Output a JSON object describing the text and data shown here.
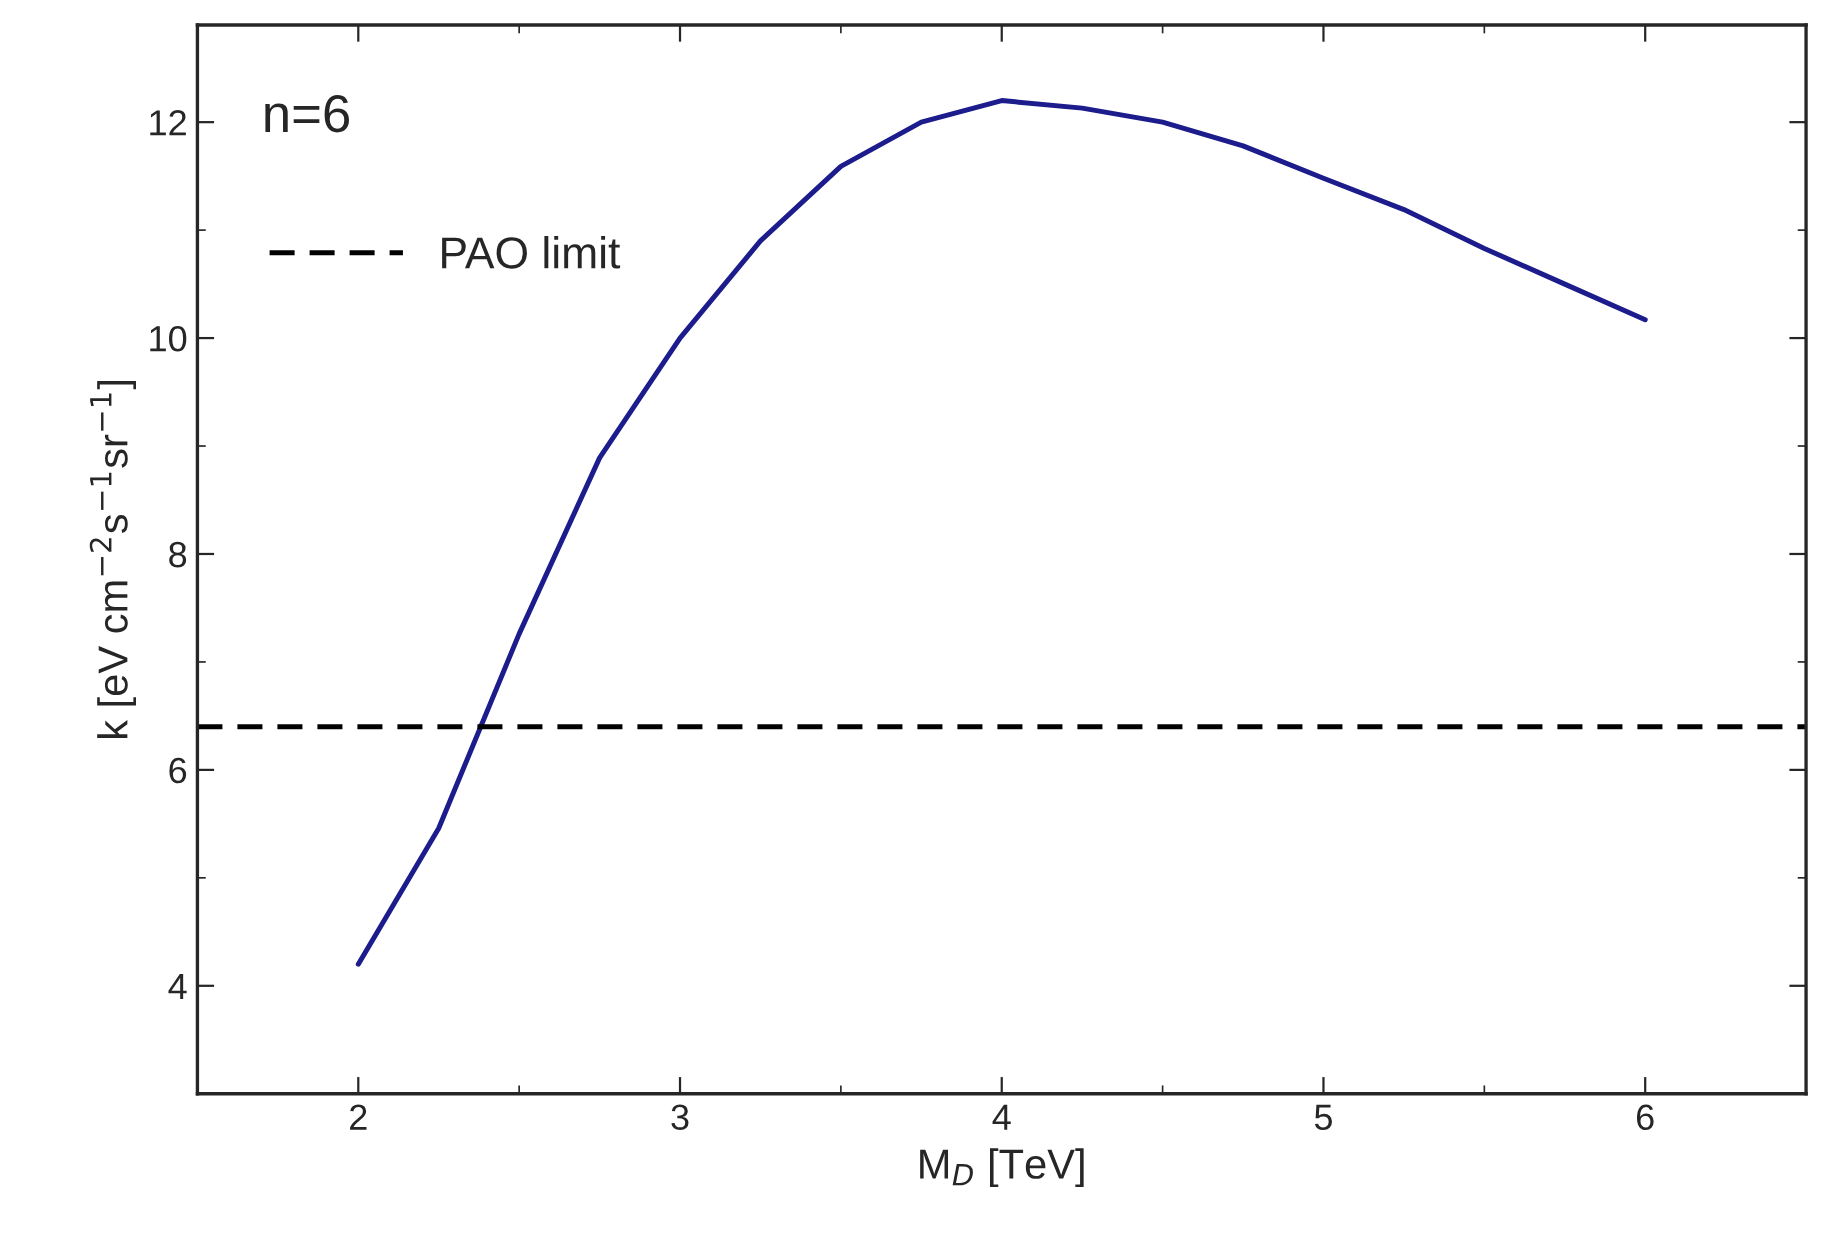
{
  "chart_data": {
    "type": "line",
    "xlabel": "M$_{D}$ [TeV]",
    "ylabel": "k [eV cm$^{−2}$s$^{−1}$sr$^{−1}$]",
    "annotations": [
      "n=6"
    ],
    "x": [
      2,
      2.25,
      2.5,
      2.75,
      3,
      3.25,
      3.5,
      3.75,
      4,
      4.25,
      4.5,
      4.75,
      5,
      5.25,
      5.5,
      5.75,
      6
    ],
    "series": [
      {
        "color": "#1c1c8c",
        "values": [
          4.2,
          5.46,
          7.26,
          8.89,
          10.0,
          10.9,
          11.59,
          12.0,
          12.2,
          12.13,
          12.0,
          11.78,
          11.48,
          11.19,
          10.83,
          10.5,
          10.17
        ]
      }
    ],
    "ref_lines": [
      {
        "axis": "y",
        "value": 6.4,
        "label": "PAO limit",
        "color": "#000000",
        "line_style": "dashed"
      }
    ],
    "xlim": [
      1.5,
      6.5
    ],
    "ylim": [
      3,
      12.9
    ],
    "xticks": [
      2,
      3,
      4,
      5,
      6
    ],
    "yticks": [
      4,
      6,
      8,
      10,
      12
    ],
    "legend": "top left",
    "grid": false,
    "marker": "none",
    "line_style": "solid"
  }
}
